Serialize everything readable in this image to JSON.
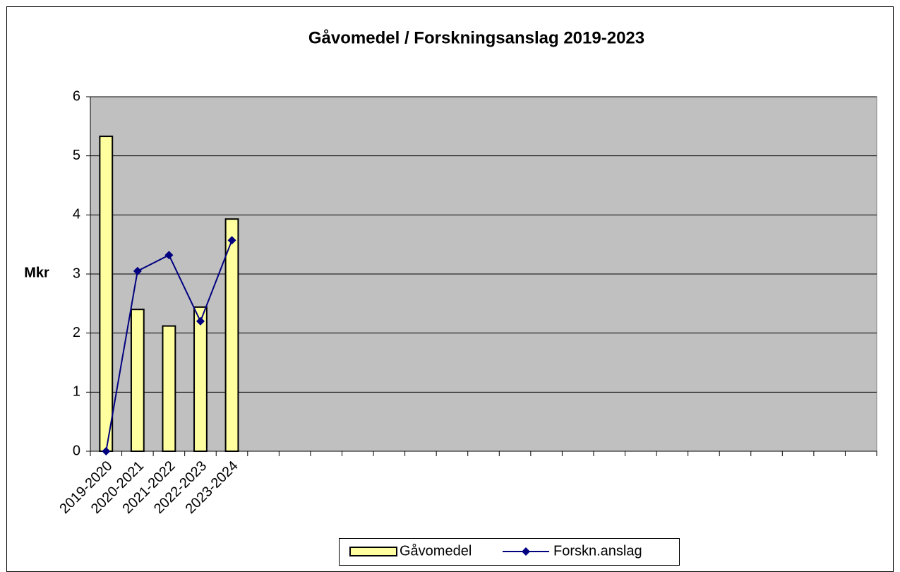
{
  "chart_data": {
    "type": "bar_line",
    "title": "Gåvomedel / Forskningsanslag 2019-2023",
    "y_label": "Mkr",
    "categories": [
      "2019-2020",
      "2020-2021",
      "2021-2022",
      "2022-2023",
      "2023-2024",
      null,
      null,
      null,
      null,
      null,
      null,
      null,
      null,
      null,
      null,
      null,
      null,
      null,
      null,
      null,
      null,
      null,
      null,
      null,
      null
    ],
    "series": [
      {
        "name": "Gåvomedel",
        "type": "bar",
        "color": "#ffffa0",
        "values": [
          5.33,
          2.4,
          2.12,
          2.44,
          3.93,
          null,
          null,
          null,
          null,
          null,
          null,
          null,
          null,
          null,
          null,
          null,
          null,
          null,
          null,
          null,
          null,
          null,
          null,
          null,
          null
        ]
      },
      {
        "name": "Forskn.anslag",
        "type": "line",
        "color": "#000080",
        "values": [
          0,
          3.05,
          3.32,
          2.2,
          3.57,
          null,
          null,
          null,
          null,
          null,
          null,
          null,
          null,
          null,
          null,
          null,
          null,
          null,
          null,
          null,
          null,
          null,
          null,
          null,
          null
        ]
      }
    ],
    "ylim": [
      0,
      6
    ],
    "yticks": [
      0,
      1,
      2,
      3,
      4,
      5,
      6
    ],
    "grid": true,
    "legend": "bottom",
    "plot_background": "#c0c0c0"
  }
}
